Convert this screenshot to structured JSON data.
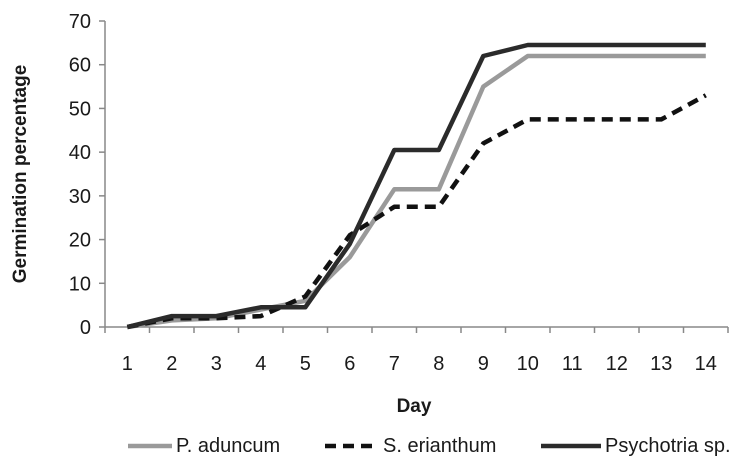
{
  "chart_data": {
    "type": "line",
    "title": "",
    "xlabel": "Day",
    "ylabel": "Germination percentage",
    "x": [
      1,
      2,
      3,
      4,
      5,
      6,
      7,
      8,
      9,
      10,
      11,
      12,
      13,
      14
    ],
    "ylim": [
      0,
      70
    ],
    "yticks": [
      0,
      10,
      20,
      30,
      40,
      50,
      60,
      70
    ],
    "grid": false,
    "legend_position": "bottom",
    "series": [
      {
        "name": "P. aduncum",
        "color": "#9a9a9a",
        "dash": "solid",
        "values": [
          0,
          1.5,
          2,
          4,
          6,
          16,
          31.5,
          31.5,
          55,
          62,
          62,
          62,
          62,
          62
        ]
      },
      {
        "name": "S. erianthum",
        "color": "#111111",
        "dash": "dashed",
        "values": [
          0,
          2,
          2,
          2.5,
          7,
          21,
          27.5,
          27.5,
          42,
          47.5,
          47.5,
          47.5,
          47.5,
          53
        ]
      },
      {
        "name": "Psychotria sp.",
        "color": "#2b2b2b",
        "dash": "solid",
        "values": [
          0,
          2.5,
          2.5,
          4.5,
          4.5,
          19,
          40.5,
          40.5,
          62,
          64.5,
          64.5,
          64.5,
          64.5,
          64.5
        ]
      }
    ]
  }
}
